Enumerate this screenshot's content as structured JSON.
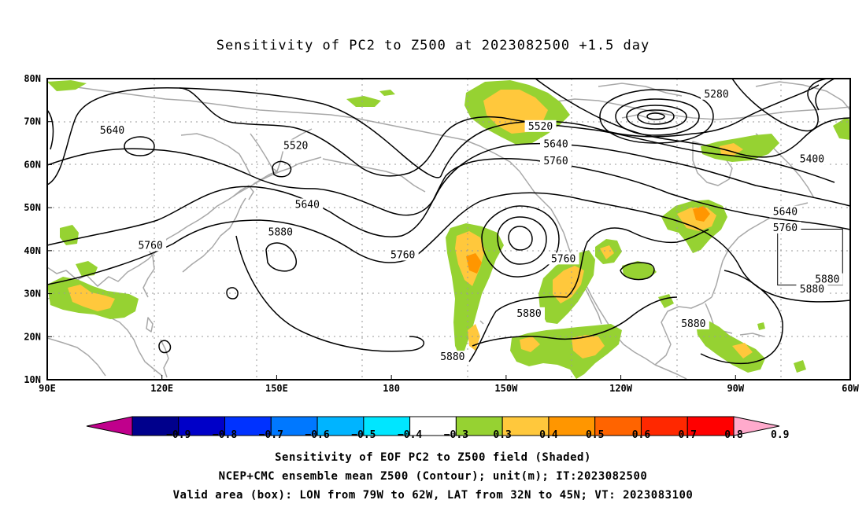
{
  "title": "Sensitivity of PC2 to Z500 at 2023082500 +1.5 day",
  "map": {
    "lon_range": [
      90,
      300
    ],
    "lat_range": [
      10,
      80
    ],
    "lat_ticks": [
      {
        "value": 80,
        "label": "80N"
      },
      {
        "value": 70,
        "label": "70N"
      },
      {
        "value": 60,
        "label": "60N"
      },
      {
        "value": 50,
        "label": "50N"
      },
      {
        "value": 40,
        "label": "40N"
      },
      {
        "value": 30,
        "label": "30N"
      },
      {
        "value": 20,
        "label": "20N"
      },
      {
        "value": 10,
        "label": "10N"
      }
    ],
    "lon_ticks": [
      {
        "value": 90,
        "label": "90E"
      },
      {
        "value": 120,
        "label": "120E"
      },
      {
        "value": 150,
        "label": "150E"
      },
      {
        "value": 180,
        "label": "180"
      },
      {
        "value": 210,
        "label": "150W"
      },
      {
        "value": 240,
        "label": "120W"
      },
      {
        "value": 270,
        "label": "90W"
      },
      {
        "value": 300,
        "label": "60W"
      }
    ],
    "grid": "dotted",
    "valid_box": {
      "lon_min": 281,
      "lon_max": 298,
      "lat_min": 32,
      "lat_max": 45
    },
    "contour_labels": [
      {
        "text": "5640",
        "lon": 107,
        "lat": 67.8
      },
      {
        "text": "5520",
        "lon": 155,
        "lat": 64.2
      },
      {
        "text": "5640",
        "lon": 158,
        "lat": 50.5
      },
      {
        "text": "5880",
        "lon": 151,
        "lat": 44.1
      },
      {
        "text": "5760",
        "lon": 117,
        "lat": 41.0
      },
      {
        "text": "5760",
        "lon": 183,
        "lat": 38.8
      },
      {
        "text": "5520",
        "lon": 219,
        "lat": 68.7
      },
      {
        "text": "5640",
        "lon": 223,
        "lat": 64.6
      },
      {
        "text": "5760",
        "lon": 223,
        "lat": 60.6
      },
      {
        "text": "5760",
        "lon": 225,
        "lat": 37.9
      },
      {
        "text": "5880",
        "lon": 216,
        "lat": 25.2
      },
      {
        "text": "5880",
        "lon": 196,
        "lat": 15.1
      },
      {
        "text": "5880",
        "lon": 259,
        "lat": 22.8
      },
      {
        "text": "5280",
        "lon": 265,
        "lat": 76.2
      },
      {
        "text": "5400",
        "lon": 290,
        "lat": 61.1
      },
      {
        "text": "5640",
        "lon": 283,
        "lat": 48.8
      },
      {
        "text": "5760",
        "lon": 283,
        "lat": 45.1
      },
      {
        "text": "5880",
        "lon": 294,
        "lat": 33.1
      },
      {
        "text": "5880",
        "lon": 290,
        "lat": 30.8
      }
    ]
  },
  "colorbar": {
    "labels": [
      "−0.9",
      "−0.8",
      "−0.7",
      "−0.6",
      "−0.5",
      "−0.4",
      "−0.3",
      "0.3",
      "0.4",
      "0.5",
      "0.6",
      "0.7",
      "0.8",
      "0.9"
    ],
    "colors": [
      "#c0008c",
      "#00008c",
      "#0000c8",
      "#0032ff",
      "#0078ff",
      "#00b4ff",
      "#00e6ff",
      "#ffffff",
      "#96d232",
      "#ffc83c",
      "#ff9600",
      "#ff6400",
      "#ff2800",
      "#ff0000",
      "#ffaacc"
    ]
  },
  "captions": {
    "line1": "Sensitivity of EOF PC2 to Z500 field (Shaded)",
    "line2": "NCEP+CMC ensemble mean Z500 (Contour); unit(m); IT:2023082500",
    "line3": "Valid area (box): LON from 79W to 62W, LAT from 32N to 45N; VT: 2023083100"
  }
}
